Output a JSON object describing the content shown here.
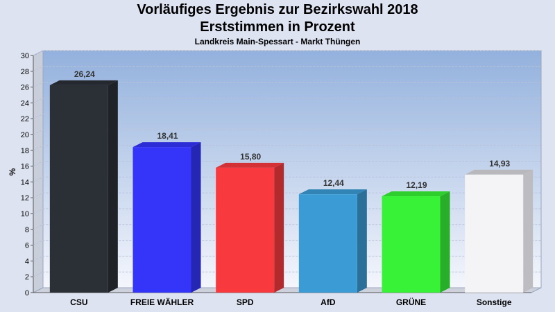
{
  "chart_data": {
    "type": "bar",
    "title": "Vorläufiges Ergebnis zur Bezirkswahl 2018",
    "title_line2": "Erststimmen in Prozent",
    "subtitle": "Landkreis Main-Spessart - Markt Thüngen",
    "ylabel": "%",
    "xlabel": "",
    "ylim": [
      0,
      30
    ],
    "ytick_step": 2,
    "grid": true,
    "legend": "none",
    "categories": [
      "CSU",
      "FREIE WÄHLER",
      "SPD",
      "AfD",
      "GRÜNE",
      "Sonstige"
    ],
    "values": [
      26.24,
      18.41,
      15.8,
      12.44,
      12.19,
      14.93
    ],
    "value_labels": [
      "26,24",
      "18,41",
      "15,80",
      "12,44",
      "12,19",
      "14,93"
    ],
    "colors": [
      "#2b2f36",
      "#3535fa",
      "#f83a3f",
      "#3a9bd5",
      "#37f237",
      "#f4f4f6"
    ]
  }
}
